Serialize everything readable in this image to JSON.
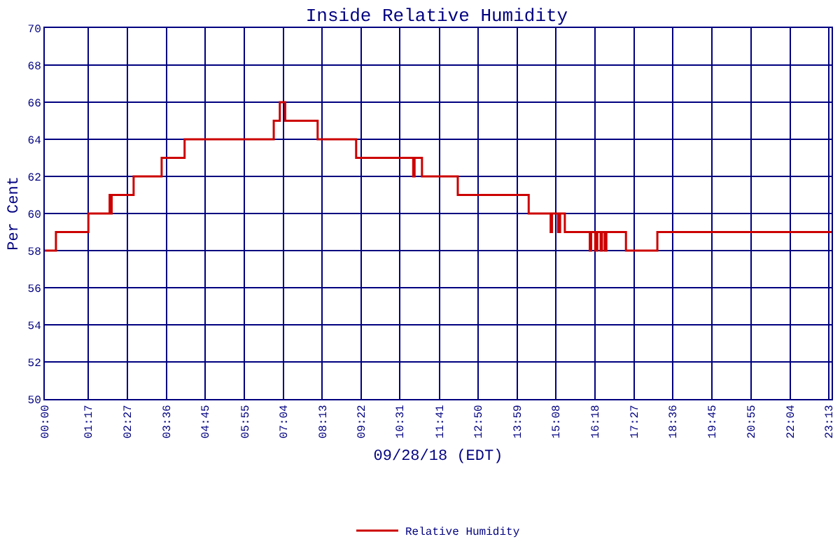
{
  "chart_data": {
    "type": "step",
    "title": "Inside Relative Humidity",
    "xlabel": "09/28/18 (EDT)",
    "ylabel": "Per Cent",
    "x": [
      0,
      0.33,
      1.29,
      1.92,
      1.96,
      1.98,
      2.63,
      3.46,
      3.48,
      4.14,
      6.78,
      6.96,
      7.04,
      7.12,
      8.08,
      9.22,
      10.91,
      10.95,
      11.17,
      12.23,
      14.33,
      14.98,
      15.02,
      15.2,
      15.26,
      15.4,
      16.14,
      16.18,
      16.3,
      16.36,
      16.46,
      16.5,
      16.58,
      16.63,
      17.21,
      18.14,
      23.3
    ],
    "series": [
      {
        "name": "Relative Humidity",
        "color": "#cc0000",
        "values": [
          58,
          59,
          60,
          61,
          60,
          61,
          62,
          63,
          63,
          64,
          65,
          66,
          66,
          65,
          64,
          63,
          62,
          63,
          62,
          61,
          60,
          59,
          60,
          59,
          60,
          59,
          58,
          59,
          58,
          59,
          58,
          59,
          58,
          59,
          58,
          59,
          59
        ]
      }
    ],
    "xlim": [
      0,
      23.3
    ],
    "ylim": [
      50,
      70
    ],
    "xticks": [
      {
        "value": 0,
        "label": "00:00"
      },
      {
        "value": 1.2833,
        "label": "01:17"
      },
      {
        "value": 2.45,
        "label": "02:27"
      },
      {
        "value": 3.6,
        "label": "03:36"
      },
      {
        "value": 4.75,
        "label": "04:45"
      },
      {
        "value": 5.9167,
        "label": "05:55"
      },
      {
        "value": 7.0667,
        "label": "07:04"
      },
      {
        "value": 8.2167,
        "label": "08:13"
      },
      {
        "value": 9.3667,
        "label": "09:22"
      },
      {
        "value": 10.5167,
        "label": "10:31"
      },
      {
        "value": 11.6833,
        "label": "11:41"
      },
      {
        "value": 12.8333,
        "label": "12:50"
      },
      {
        "value": 13.9833,
        "label": "13:59"
      },
      {
        "value": 15.1333,
        "label": "15:08"
      },
      {
        "value": 16.3,
        "label": "16:18"
      },
      {
        "value": 17.45,
        "label": "17:27"
      },
      {
        "value": 18.6,
        "label": "18:36"
      },
      {
        "value": 19.75,
        "label": "19:45"
      },
      {
        "value": 20.9167,
        "label": "20:55"
      },
      {
        "value": 22.0667,
        "label": "22:04"
      },
      {
        "value": 23.2167,
        "label": "23:13"
      }
    ],
    "yticks": [
      50,
      52,
      54,
      56,
      58,
      60,
      62,
      64,
      66,
      68,
      70
    ],
    "grid": true,
    "legend": "bottom",
    "marker": "none",
    "line_style": "solid"
  }
}
